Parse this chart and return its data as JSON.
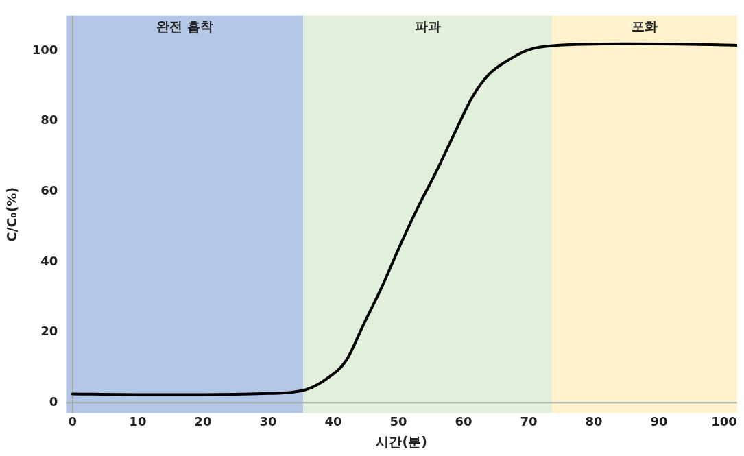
{
  "chart_data": {
    "type": "line",
    "xlabel": "시간(분)",
    "ylabel": "C/C₀(%)",
    "x": [
      0,
      10,
      20,
      30,
      33.5,
      36,
      39,
      42,
      44.6,
      47.5,
      50.2,
      53,
      55.8,
      58.6,
      61.4,
      64,
      67,
      70,
      73.7,
      85,
      100,
      102
    ],
    "series": [
      {
        "color": "#000000",
        "values": [
          2.5,
          2.3,
          2.3,
          2.6,
          2.9,
          3.8,
          6.8,
          12,
          22,
          33,
          44.4,
          55.5,
          65.6,
          76.5,
          87,
          93.5,
          97.5,
          100.3,
          101.5,
          102,
          101.7,
          101.6
        ]
      }
    ],
    "xlim": [
      -1,
      102
    ],
    "ylim": [
      -3,
      110
    ],
    "xticks": [
      0,
      10,
      20,
      30,
      40,
      50,
      60,
      70,
      80,
      90,
      100
    ],
    "yticks": [
      0,
      20,
      40,
      60,
      80,
      100
    ],
    "bands": [
      {
        "axis": "x",
        "from": -1,
        "to": 35.4,
        "label": "완전 흡착",
        "color": "#b4c7e7"
      },
      {
        "axis": "x",
        "from": 35.4,
        "to": 73.6,
        "label": "파과",
        "color": "#e2efda"
      },
      {
        "axis": "x",
        "from": 73.6,
        "to": 102,
        "label": "포화",
        "color": "#fff2cc"
      }
    ],
    "grid": false,
    "legend": false,
    "marker": "none",
    "line_style": "solid"
  }
}
